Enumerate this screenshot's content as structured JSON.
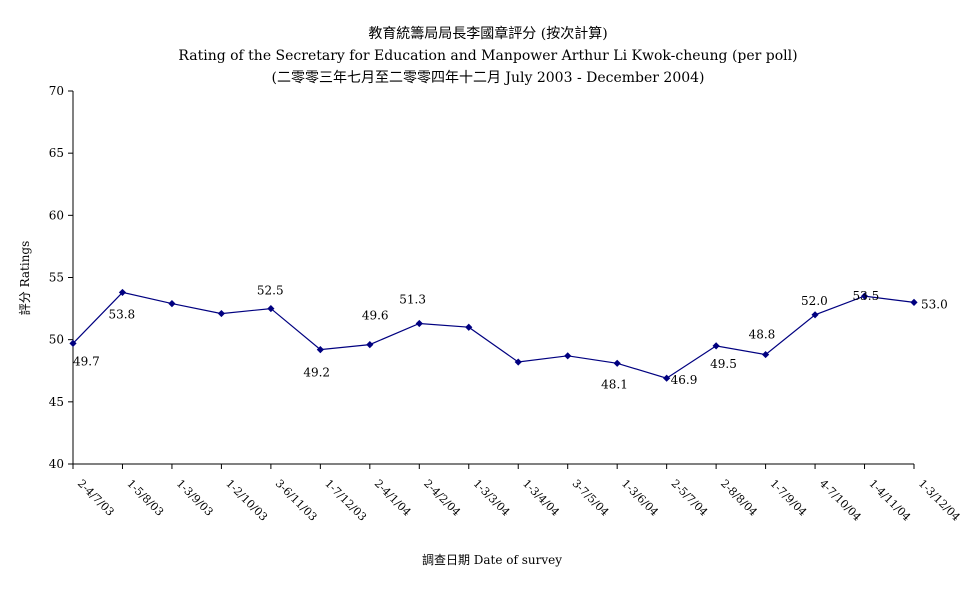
{
  "chart_data": {
    "type": "line",
    "title": "教育統籌局局長李國章評分 (按次計算)",
    "subtitle": "Rating of the Secretary for Education and Manpower Arthur Li Kwok-cheung  (per poll)",
    "subtitle2": "(二零零三年七月至二零零四年十二月 July 2003 - December 2004)",
    "xlabel": "調查日期 Date of survey",
    "ylabel": "評分 Ratings",
    "ylim": [
      40,
      70
    ],
    "yticks": [
      40,
      45,
      50,
      55,
      60,
      65,
      70
    ],
    "grid": false,
    "categories": [
      "2-4/7/03",
      "1-5/8/03",
      "1-3/9/03",
      "1-2/10/03",
      "3-6/11/03",
      "1-7/12/03",
      "2-4/1/04",
      "2-4/2/04",
      "1-3/3/04",
      "1-3/4/04",
      "3-7/5/04",
      "1-3/6/04",
      "2-5/7/04",
      "2-8/8/04",
      "1-7/9/04",
      "4-7/10/04",
      "1-4/11/04",
      "1-3/12/04"
    ],
    "series": [
      {
        "color": "#000080",
        "values": [
          49.7,
          53.8,
          52.9,
          52.1,
          52.5,
          49.2,
          49.6,
          51.3,
          51.0,
          48.2,
          48.7,
          48.1,
          46.9,
          49.5,
          48.8,
          52.0,
          53.5,
          53.0
        ]
      }
    ],
    "data_labels": [
      {
        "index": 0,
        "text": "49.7"
      },
      {
        "index": 1,
        "text": "53.8"
      },
      {
        "index": 4,
        "text": "52.5"
      },
      {
        "index": 5,
        "text": "49.2"
      },
      {
        "index": 6,
        "text": "49.6"
      },
      {
        "index": 7,
        "text": "51.3"
      },
      {
        "index": 11,
        "text": "48.1"
      },
      {
        "index": 12,
        "text": "46.9"
      },
      {
        "index": 13,
        "text": "49.5"
      },
      {
        "index": 14,
        "text": "48.8"
      },
      {
        "index": 15,
        "text": "52.0"
      },
      {
        "index": 16,
        "text": "53.5"
      },
      {
        "index": 17,
        "text": "53.0"
      }
    ]
  }
}
